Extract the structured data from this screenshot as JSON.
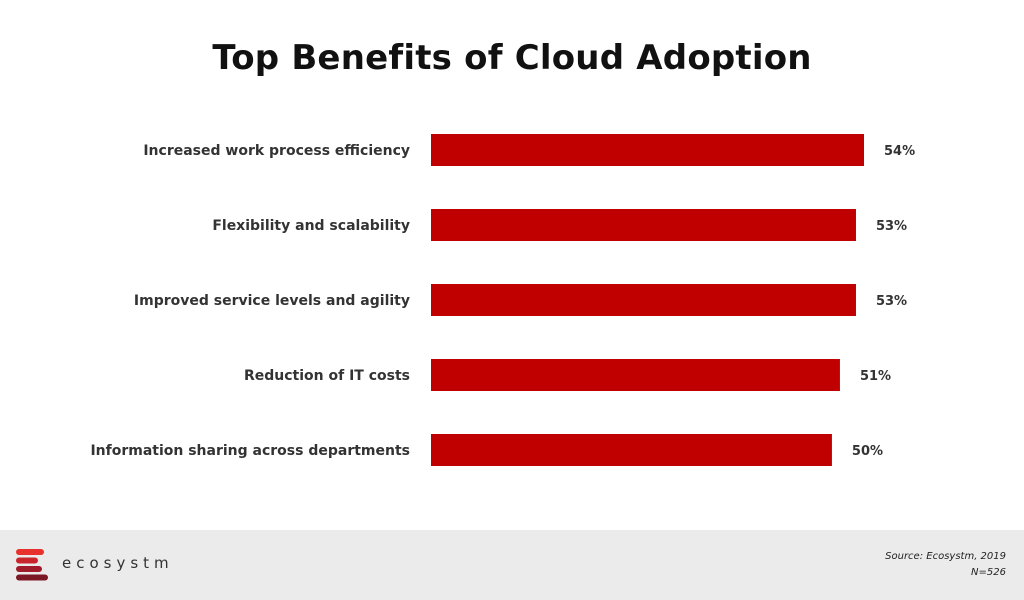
{
  "title": "Top Benefits of Cloud Adoption",
  "chart_data": {
    "type": "bar",
    "orientation": "horizontal",
    "title": "Top Benefits of Cloud Adoption",
    "categories": [
      "Increased work process efficiency",
      "Flexibility and scalability",
      "Improved service levels and agility",
      "Reduction of IT costs",
      "Information sharing across departments"
    ],
    "values": [
      54,
      53,
      53,
      51,
      50
    ],
    "value_labels": [
      "54%",
      "53%",
      "53%",
      "51%",
      "50%"
    ],
    "unit": "%",
    "xlim": [
      0,
      54
    ],
    "grid": false,
    "bar_color": "#c00000"
  },
  "footer": {
    "logo_text": "ecosystm",
    "logo_colors": [
      "#e8312d",
      "#c9252c",
      "#a01c2a",
      "#7c1725"
    ],
    "source": "Source: Ecosystm,  2019",
    "sample": "N=526",
    "background": "#ebebeb"
  }
}
